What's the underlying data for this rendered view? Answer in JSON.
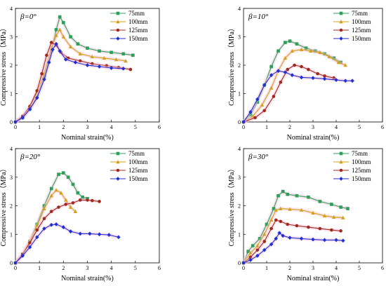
{
  "colors": {
    "75mm": "#2ca05a",
    "100mm": "#d4a017",
    "125mm": "#a0281e",
    "150mm": "#1f2fd6",
    "band": "#f3c0d6"
  },
  "chart_data": [
    {
      "type": "line",
      "title": "β=0°",
      "xlabel": "Nominal strain(%)",
      "ylabel": "Compressive stress（MPa）",
      "xlim": [
        0,
        6
      ],
      "ylim": [
        0,
        4
      ],
      "xticks": [
        "0",
        "1",
        "2",
        "3",
        "4",
        "5",
        "6"
      ],
      "yticks": [
        "0",
        "1",
        "2",
        "3",
        "4"
      ],
      "legend_position": "top-right",
      "series": [
        {
          "name": "75mm",
          "marker": "square",
          "points": [
            [
              0,
              0
            ],
            [
              0.3,
              0.15
            ],
            [
              0.6,
              0.45
            ],
            [
              0.9,
              0.9
            ],
            [
              1.2,
              1.6
            ],
            [
              1.5,
              2.5
            ],
            [
              1.7,
              3.25
            ],
            [
              1.85,
              3.7
            ],
            [
              2.0,
              3.5
            ],
            [
              2.3,
              3.0
            ],
            [
              2.6,
              2.75
            ],
            [
              3.0,
              2.6
            ],
            [
              3.5,
              2.5
            ],
            [
              4.0,
              2.45
            ],
            [
              4.5,
              2.4
            ],
            [
              4.9,
              2.35
            ]
          ]
        },
        {
          "name": "100mm",
          "marker": "triangle",
          "points": [
            [
              0,
              0
            ],
            [
              0.3,
              0.2
            ],
            [
              0.6,
              0.5
            ],
            [
              0.9,
              1.0
            ],
            [
              1.2,
              1.7
            ],
            [
              1.5,
              2.6
            ],
            [
              1.7,
              3.05
            ],
            [
              1.85,
              3.25
            ],
            [
              2.0,
              3.0
            ],
            [
              2.3,
              2.65
            ],
            [
              2.7,
              2.4
            ],
            [
              3.2,
              2.3
            ],
            [
              3.7,
              2.25
            ],
            [
              4.2,
              2.2
            ],
            [
              4.6,
              2.15
            ]
          ]
        },
        {
          "name": "125mm",
          "marker": "circle",
          "points": [
            [
              0,
              0
            ],
            [
              0.3,
              0.2
            ],
            [
              0.6,
              0.55
            ],
            [
              0.9,
              1.1
            ],
            [
              1.1,
              1.7
            ],
            [
              1.3,
              2.35
            ],
            [
              1.5,
              2.8
            ],
            [
              1.7,
              2.7
            ],
            [
              1.9,
              2.45
            ],
            [
              2.2,
              2.25
            ],
            [
              2.7,
              2.15
            ],
            [
              3.2,
              2.05
            ],
            [
              3.8,
              1.98
            ],
            [
              4.3,
              1.92
            ],
            [
              4.8,
              1.85
            ]
          ]
        },
        {
          "name": "150mm",
          "marker": "diamond",
          "points": [
            [
              0,
              0
            ],
            [
              0.3,
              0.15
            ],
            [
              0.6,
              0.45
            ],
            [
              0.9,
              0.85
            ],
            [
              1.2,
              1.5
            ],
            [
              1.4,
              2.1
            ],
            [
              1.55,
              2.55
            ],
            [
              1.7,
              2.75
            ],
            [
              1.85,
              2.5
            ],
            [
              2.1,
              2.2
            ],
            [
              2.5,
              2.1
            ],
            [
              3.0,
              2.0
            ],
            [
              3.5,
              1.95
            ],
            [
              4.0,
              1.9
            ],
            [
              4.5,
              1.88
            ]
          ]
        }
      ]
    },
    {
      "type": "line",
      "title": "β=10°",
      "xlabel": "Nominal strain(%)",
      "ylabel": "Compressive stress（MPa）",
      "xlim": [
        0,
        6
      ],
      "ylim": [
        0,
        4
      ],
      "xticks": [
        "0",
        "1",
        "2",
        "3",
        "4",
        "5",
        "6"
      ],
      "yticks": [
        "0",
        "1",
        "2",
        "3",
        "4"
      ],
      "legend_position": "top-right",
      "series": [
        {
          "name": "75mm",
          "marker": "square",
          "points": [
            [
              0,
              0
            ],
            [
              0.3,
              0.25
            ],
            [
              0.6,
              0.7
            ],
            [
              0.9,
              1.3
            ],
            [
              1.2,
              1.95
            ],
            [
              1.5,
              2.5
            ],
            [
              1.8,
              2.8
            ],
            [
              2.0,
              2.85
            ],
            [
              2.3,
              2.75
            ],
            [
              2.7,
              2.6
            ],
            [
              3.1,
              2.5
            ],
            [
              3.5,
              2.4
            ],
            [
              3.9,
              2.25
            ],
            [
              4.2,
              2.1
            ]
          ]
        },
        {
          "name": "100mm",
          "marker": "triangle",
          "points": [
            [
              0,
              0
            ],
            [
              0.4,
              0.2
            ],
            [
              0.8,
              0.6
            ],
            [
              1.2,
              1.2
            ],
            [
              1.5,
              1.8
            ],
            [
              1.8,
              2.25
            ],
            [
              2.1,
              2.5
            ],
            [
              2.5,
              2.55
            ],
            [
              2.9,
              2.5
            ],
            [
              3.3,
              2.45
            ],
            [
              3.7,
              2.3
            ],
            [
              4.1,
              2.1
            ],
            [
              4.4,
              2.0
            ]
          ]
        },
        {
          "name": "125mm",
          "marker": "circle",
          "points": [
            [
              0,
              0
            ],
            [
              0.5,
              0.15
            ],
            [
              0.9,
              0.4
            ],
            [
              1.3,
              0.9
            ],
            [
              1.6,
              1.4
            ],
            [
              1.9,
              1.85
            ],
            [
              2.2,
              2.0
            ],
            [
              2.5,
              1.95
            ],
            [
              2.8,
              1.85
            ],
            [
              3.2,
              1.7
            ],
            [
              3.5,
              1.62
            ],
            [
              3.9,
              1.55
            ]
          ]
        },
        {
          "name": "150mm",
          "marker": "diamond",
          "points": [
            [
              0,
              0
            ],
            [
              0.3,
              0.35
            ],
            [
              0.6,
              0.8
            ],
            [
              0.9,
              1.3
            ],
            [
              1.2,
              1.65
            ],
            [
              1.5,
              1.8
            ],
            [
              1.8,
              1.75
            ],
            [
              2.1,
              1.65
            ],
            [
              2.5,
              1.57
            ],
            [
              3.0,
              1.55
            ],
            [
              3.5,
              1.52
            ],
            [
              4.0,
              1.48
            ],
            [
              4.4,
              1.45
            ],
            [
              4.7,
              1.45
            ]
          ]
        }
      ]
    },
    {
      "type": "line",
      "title": "β=20°",
      "xlabel": "Nominal strain(%)",
      "ylabel": "Compressive stress（MPa）",
      "xlim": [
        0,
        6
      ],
      "ylim": [
        0,
        4
      ],
      "xticks": [
        "0",
        "1",
        "2",
        "3",
        "4",
        "5",
        "6"
      ],
      "yticks": [
        "0",
        "1",
        "2",
        "3",
        "4"
      ],
      "legend_position": "top-right",
      "series": [
        {
          "name": "75mm",
          "marker": "square",
          "points": [
            [
              0,
              0
            ],
            [
              0.3,
              0.3
            ],
            [
              0.6,
              0.75
            ],
            [
              0.9,
              1.35
            ],
            [
              1.2,
              2.0
            ],
            [
              1.5,
              2.6
            ],
            [
              1.8,
              3.1
            ],
            [
              2.0,
              3.15
            ],
            [
              2.2,
              3.0
            ],
            [
              2.4,
              2.75
            ],
            [
              2.6,
              2.45
            ],
            [
              2.8,
              2.3
            ],
            [
              3.0,
              2.25
            ]
          ]
        },
        {
          "name": "100mm",
          "marker": "triangle",
          "points": [
            [
              0,
              0
            ],
            [
              0.3,
              0.3
            ],
            [
              0.6,
              0.75
            ],
            [
              0.9,
              1.3
            ],
            [
              1.2,
              1.9
            ],
            [
              1.5,
              2.35
            ],
            [
              1.7,
              2.55
            ],
            [
              1.9,
              2.45
            ],
            [
              2.1,
              2.2
            ],
            [
              2.3,
              1.95
            ],
            [
              2.5,
              1.8
            ]
          ]
        },
        {
          "name": "125mm",
          "marker": "circle",
          "points": [
            [
              0,
              0
            ],
            [
              0.3,
              0.3
            ],
            [
              0.6,
              0.7
            ],
            [
              0.9,
              1.15
            ],
            [
              1.2,
              1.55
            ],
            [
              1.5,
              1.8
            ],
            [
              1.8,
              1.95
            ],
            [
              2.1,
              2.05
            ],
            [
              2.4,
              2.1
            ],
            [
              2.7,
              2.2
            ],
            [
              3.0,
              2.2
            ],
            [
              3.2,
              2.18
            ],
            [
              3.5,
              2.15
            ]
          ]
        },
        {
          "name": "150mm",
          "marker": "diamond",
          "points": [
            [
              0,
              0
            ],
            [
              0.3,
              0.25
            ],
            [
              0.6,
              0.55
            ],
            [
              0.9,
              0.9
            ],
            [
              1.2,
              1.2
            ],
            [
              1.5,
              1.33
            ],
            [
              1.7,
              1.35
            ],
            [
              2.0,
              1.25
            ],
            [
              2.3,
              1.1
            ],
            [
              2.7,
              1.02
            ],
            [
              3.1,
              1.02
            ],
            [
              3.5,
              1.0
            ],
            [
              3.9,
              0.98
            ],
            [
              4.3,
              0.9
            ]
          ]
        }
      ]
    },
    {
      "type": "line",
      "title": "β=30°",
      "xlabel": "Nominal strain(%)",
      "ylabel": "Compressive stress（MPa）",
      "xlim": [
        0,
        6
      ],
      "ylim": [
        0,
        4
      ],
      "xticks": [
        "0",
        "1",
        "2",
        "3",
        "4",
        "5",
        "6"
      ],
      "yticks": [
        "0",
        "1",
        "2",
        "3",
        "4"
      ],
      "legend_position": "top-right",
      "series": [
        {
          "name": "75mm",
          "marker": "square",
          "points": [
            [
              0,
              0
            ],
            [
              0.2,
              0.4
            ],
            [
              0.4,
              0.6
            ],
            [
              0.7,
              0.85
            ],
            [
              1.0,
              1.35
            ],
            [
              1.3,
              1.9
            ],
            [
              1.5,
              2.35
            ],
            [
              1.7,
              2.5
            ],
            [
              1.9,
              2.4
            ],
            [
              2.3,
              2.35
            ],
            [
              2.8,
              2.3
            ],
            [
              3.3,
              2.15
            ],
            [
              3.8,
              2.05
            ],
            [
              4.2,
              1.95
            ],
            [
              4.5,
              1.9
            ]
          ]
        },
        {
          "name": "100mm",
          "marker": "triangle",
          "points": [
            [
              0,
              0
            ],
            [
              0.3,
              0.35
            ],
            [
              0.6,
              0.6
            ],
            [
              0.9,
              1.0
            ],
            [
              1.2,
              1.5
            ],
            [
              1.4,
              1.85
            ],
            [
              1.6,
              1.9
            ],
            [
              2.0,
              1.88
            ],
            [
              2.5,
              1.85
            ],
            [
              3.0,
              1.75
            ],
            [
              3.5,
              1.65
            ],
            [
              3.9,
              1.6
            ],
            [
              4.3,
              1.58
            ]
          ]
        },
        {
          "name": "125mm",
          "marker": "circle",
          "points": [
            [
              0,
              0
            ],
            [
              0.3,
              0.2
            ],
            [
              0.6,
              0.45
            ],
            [
              0.9,
              0.75
            ],
            [
              1.2,
              1.2
            ],
            [
              1.4,
              1.5
            ],
            [
              1.6,
              1.45
            ],
            [
              1.9,
              1.35
            ],
            [
              2.3,
              1.3
            ],
            [
              2.8,
              1.25
            ],
            [
              3.3,
              1.2
            ],
            [
              3.8,
              1.15
            ],
            [
              4.2,
              1.12
            ]
          ]
        },
        {
          "name": "150mm",
          "marker": "diamond",
          "points": [
            [
              0,
              0
            ],
            [
              0.3,
              0.1
            ],
            [
              0.6,
              0.25
            ],
            [
              0.9,
              0.45
            ],
            [
              1.2,
              0.65
            ],
            [
              1.4,
              0.85
            ],
            [
              1.55,
              1.05
            ],
            [
              1.7,
              0.95
            ],
            [
              2.0,
              0.88
            ],
            [
              2.5,
              0.85
            ],
            [
              3.0,
              0.82
            ],
            [
              3.5,
              0.8
            ],
            [
              4.0,
              0.8
            ],
            [
              4.3,
              0.78
            ]
          ]
        }
      ]
    }
  ]
}
